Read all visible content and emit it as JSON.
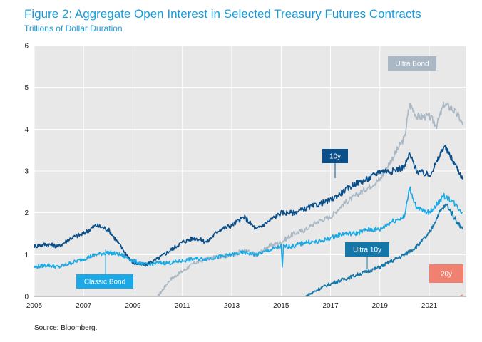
{
  "title": "Figure 2: Aggregate Open Interest in Selected Treasury Futures Contracts",
  "subtitle": "Trillions of Dollar Duration",
  "source": "Source: Bloomberg.",
  "chart_data": {
    "type": "line",
    "title": "Figure 2: Aggregate Open Interest in Selected Treasury Futures Contracts",
    "subtitle": "Trillions of Dollar Duration",
    "xlabel": "",
    "ylabel": "",
    "xlim": [
      2005,
      2022.5
    ],
    "ylim": [
      0,
      6
    ],
    "grid": true,
    "x_ticks": [
      "2005",
      "2007",
      "2009",
      "2011",
      "2013",
      "2015",
      "2017",
      "2019",
      "2021"
    ],
    "y_ticks": [
      "0",
      "1",
      "2",
      "3",
      "4",
      "5",
      "6"
    ],
    "background": "#e8e8e8",
    "series": [
      {
        "name": "Ultra Bond",
        "color": "#a9b8c4",
        "points": [
          [
            2010.0,
            0.0
          ],
          [
            2010.5,
            0.4
          ],
          [
            2011.0,
            0.6
          ],
          [
            2011.5,
            0.8
          ],
          [
            2012.0,
            0.9
          ],
          [
            2012.5,
            0.95
          ],
          [
            2013.0,
            1.0
          ],
          [
            2013.5,
            1.1
          ],
          [
            2014.0,
            1.0
          ],
          [
            2014.5,
            1.2
          ],
          [
            2015.0,
            1.3
          ],
          [
            2015.5,
            1.5
          ],
          [
            2016.0,
            1.6
          ],
          [
            2016.5,
            1.8
          ],
          [
            2017.0,
            1.9
          ],
          [
            2017.5,
            2.2
          ],
          [
            2018.0,
            2.4
          ],
          [
            2018.5,
            2.6
          ],
          [
            2019.0,
            2.8
          ],
          [
            2019.5,
            3.3
          ],
          [
            2020.0,
            3.8
          ],
          [
            2020.2,
            4.6
          ],
          [
            2020.5,
            4.3
          ],
          [
            2021.0,
            4.3
          ],
          [
            2021.3,
            4.1
          ],
          [
            2021.6,
            4.6
          ],
          [
            2021.9,
            4.5
          ],
          [
            2022.2,
            4.3
          ],
          [
            2022.35,
            4.1
          ]
        ]
      },
      {
        "name": "10y",
        "color": "#0b4f8a",
        "points": [
          [
            2005.0,
            1.2
          ],
          [
            2005.5,
            1.25
          ],
          [
            2006.0,
            1.2
          ],
          [
            2006.5,
            1.4
          ],
          [
            2007.0,
            1.5
          ],
          [
            2007.5,
            1.7
          ],
          [
            2008.0,
            1.6
          ],
          [
            2008.5,
            1.2
          ],
          [
            2009.0,
            0.8
          ],
          [
            2009.5,
            0.75
          ],
          [
            2010.0,
            0.9
          ],
          [
            2010.5,
            1.1
          ],
          [
            2011.0,
            1.3
          ],
          [
            2011.5,
            1.4
          ],
          [
            2012.0,
            1.3
          ],
          [
            2012.5,
            1.6
          ],
          [
            2013.0,
            1.7
          ],
          [
            2013.5,
            1.9
          ],
          [
            2014.0,
            1.6
          ],
          [
            2014.5,
            1.8
          ],
          [
            2015.0,
            2.0
          ],
          [
            2015.5,
            2.0
          ],
          [
            2016.0,
            2.1
          ],
          [
            2016.5,
            2.2
          ],
          [
            2017.0,
            2.3
          ],
          [
            2017.5,
            2.5
          ],
          [
            2018.0,
            2.7
          ],
          [
            2018.5,
            2.8
          ],
          [
            2019.0,
            3.0
          ],
          [
            2019.5,
            3.0
          ],
          [
            2020.0,
            3.1
          ],
          [
            2020.2,
            3.4
          ],
          [
            2020.5,
            3.0
          ],
          [
            2021.0,
            2.9
          ],
          [
            2021.3,
            3.2
          ],
          [
            2021.6,
            3.6
          ],
          [
            2021.9,
            3.3
          ],
          [
            2022.2,
            3.0
          ],
          [
            2022.35,
            2.8
          ]
        ]
      },
      {
        "name": "Classic Bond",
        "color": "#1aa9e6",
        "points": [
          [
            2005.0,
            0.7
          ],
          [
            2005.5,
            0.75
          ],
          [
            2006.0,
            0.7
          ],
          [
            2006.5,
            0.8
          ],
          [
            2007.0,
            0.9
          ],
          [
            2007.5,
            1.0
          ],
          [
            2008.0,
            1.05
          ],
          [
            2008.5,
            1.0
          ],
          [
            2009.0,
            0.85
          ],
          [
            2009.5,
            0.75
          ],
          [
            2010.0,
            0.8
          ],
          [
            2010.5,
            0.8
          ],
          [
            2011.0,
            0.85
          ],
          [
            2011.5,
            0.9
          ],
          [
            2012.0,
            0.9
          ],
          [
            2012.5,
            0.95
          ],
          [
            2013.0,
            1.0
          ],
          [
            2013.5,
            1.05
          ],
          [
            2014.0,
            1.0
          ],
          [
            2014.5,
            1.1
          ],
          [
            2015.0,
            1.2
          ],
          [
            2015.05,
            0.7
          ],
          [
            2015.1,
            1.2
          ],
          [
            2015.5,
            1.2
          ],
          [
            2016.0,
            1.3
          ],
          [
            2016.5,
            1.3
          ],
          [
            2017.0,
            1.4
          ],
          [
            2017.5,
            1.5
          ],
          [
            2018.0,
            1.5
          ],
          [
            2018.5,
            1.6
          ],
          [
            2019.0,
            1.6
          ],
          [
            2019.5,
            1.8
          ],
          [
            2020.0,
            1.9
          ],
          [
            2020.2,
            2.6
          ],
          [
            2020.5,
            2.1
          ],
          [
            2021.0,
            2.0
          ],
          [
            2021.3,
            2.2
          ],
          [
            2021.6,
            2.4
          ],
          [
            2021.9,
            2.3
          ],
          [
            2022.2,
            2.1
          ],
          [
            2022.35,
            2.0
          ]
        ]
      },
      {
        "name": "Ultra 10y",
        "color": "#1577a8",
        "points": [
          [
            2016.0,
            0.0
          ],
          [
            2016.3,
            0.1
          ],
          [
            2016.6,
            0.2
          ],
          [
            2017.0,
            0.3
          ],
          [
            2017.5,
            0.4
          ],
          [
            2018.0,
            0.5
          ],
          [
            2018.5,
            0.6
          ],
          [
            2019.0,
            0.7
          ],
          [
            2019.5,
            0.85
          ],
          [
            2020.0,
            1.0
          ],
          [
            2020.5,
            1.2
          ],
          [
            2021.0,
            1.5
          ],
          [
            2021.4,
            2.0
          ],
          [
            2021.7,
            2.2
          ],
          [
            2022.0,
            1.9
          ],
          [
            2022.35,
            1.6
          ]
        ]
      },
      {
        "name": "20y",
        "color": "#f08070",
        "points": [
          [
            2022.25,
            0.0
          ],
          [
            2022.3,
            0.02
          ],
          [
            2022.35,
            0.03
          ]
        ]
      }
    ]
  }
}
